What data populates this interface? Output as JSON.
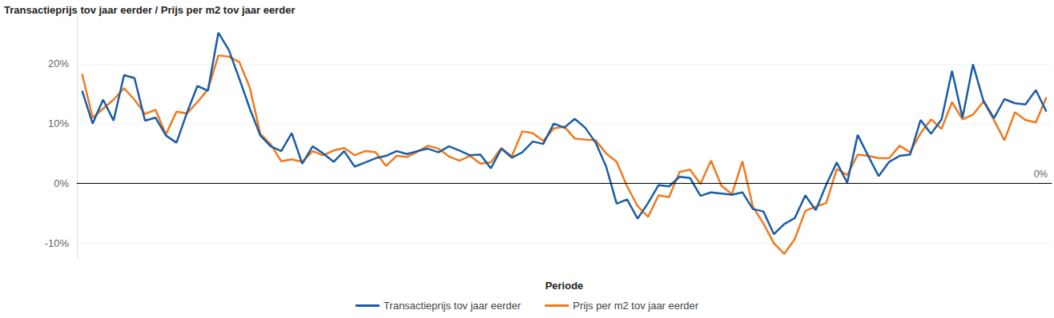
{
  "chart_data": {
    "type": "line",
    "title": "Transactieprijs tov jaar eerder / Prijs per m2 tov jaar eerder",
    "x_label": "Periode",
    "categories": [
      null,
      null,
      null,
      null,
      null,
      null,
      null,
      null,
      null,
      null,
      null,
      null,
      null,
      null,
      null,
      null,
      null,
      null,
      null,
      null,
      null,
      null,
      null,
      null,
      null,
      null,
      null,
      null,
      null,
      null,
      null,
      null,
      null,
      null,
      null,
      null,
      null,
      null,
      null,
      null,
      null,
      null,
      null,
      null,
      null,
      null,
      null,
      null,
      null,
      null,
      null,
      null,
      null,
      null,
      null,
      null,
      null,
      null,
      null,
      null,
      null,
      null,
      null,
      null,
      null,
      null,
      null,
      null,
      null,
      null,
      null,
      null,
      null,
      null,
      null,
      null,
      null,
      null,
      null,
      null,
      null,
      null,
      null,
      null,
      null,
      null,
      null,
      null,
      null,
      null,
      null,
      null,
      null
    ],
    "series": [
      {
        "name": "Transactieprijs tov jaar eerder",
        "color": "#1a5da6",
        "values": [
          15.5,
          10,
          14,
          10.5,
          18.1,
          17.6,
          10.5,
          11,
          8,
          6.8,
          11.8,
          16.3,
          15.5,
          25.2,
          22.3,
          17.5,
          12.5,
          8,
          6.2,
          5.4,
          8.4,
          3.3,
          6.2,
          5,
          3.6,
          5.4,
          2.8,
          3.5,
          4.2,
          4.6,
          5.4,
          4.9,
          5.4,
          5.8,
          5.2,
          6.2,
          5.5,
          4.7,
          4.8,
          2.5,
          5.8,
          4.3,
          5.2,
          7,
          6.6,
          10,
          9.3,
          10.8,
          9.3,
          6.8,
          2.8,
          -3.4,
          -2.7,
          -5.9,
          -3.3,
          -0.3,
          -0.5,
          1.1,
          0.9,
          -2.1,
          -1.5,
          -1.7,
          -1.9,
          -1.5,
          -4.3,
          -4.7,
          -8.5,
          -6.8,
          -5.8,
          -2,
          -4.5,
          -0.2,
          3.5,
          0.1,
          8.1,
          4.6,
          1.2,
          3.6,
          4.6,
          4.8,
          10.6,
          8.3,
          10.7,
          18.8,
          11,
          19.9,
          13.8,
          10.9,
          14.1,
          13.4,
          13.2,
          15.6,
          12
        ]
      },
      {
        "name": "Prijs per m2 tov jaar eerder",
        "color": "#f07a1e",
        "values": [
          18.3,
          11,
          12.5,
          14,
          15.9,
          14,
          11.6,
          12.3,
          8.2,
          12,
          11.7,
          13.6,
          15.7,
          21.4,
          21.2,
          20.3,
          16,
          8.3,
          6.5,
          3.7,
          4,
          3.6,
          5.4,
          4.7,
          5.5,
          5.9,
          4.7,
          5.4,
          5.2,
          2.9,
          4.6,
          4.4,
          5.3,
          6.3,
          5.8,
          4.5,
          3.8,
          4.6,
          3.3,
          3.5,
          5.9,
          4.5,
          8.7,
          8.4,
          7.1,
          9.2,
          9.5,
          7.5,
          7.3,
          7.2,
          5,
          3.6,
          -0.5,
          -3.8,
          -5.6,
          -2,
          -2.3,
          1.9,
          2.3,
          -0.1,
          3.8,
          -0.4,
          -1.8,
          3.7,
          -3.9,
          -6.7,
          -10,
          -11.8,
          -9.3,
          -4.6,
          -3.9,
          -3.3,
          2.4,
          1.4,
          4.8,
          4.6,
          4.2,
          4.2,
          6.3,
          5.2,
          8.4,
          10.7,
          9.1,
          13.6,
          10.7,
          11.5,
          13.7,
          10.6,
          7.2,
          11.9,
          10.6,
          10.2,
          14.4
        ]
      }
    ],
    "ylim": [
      -12.5,
      28
    ],
    "yticks": [
      {
        "value": -10,
        "label": "-10%"
      },
      {
        "value": 0,
        "label": "0%"
      },
      {
        "value": 10,
        "label": "10%"
      },
      {
        "value": 20,
        "label": "20%"
      }
    ],
    "annotations": [
      {
        "label": "0%",
        "y": 0
      }
    ],
    "grid": true,
    "legend": "bottom",
    "tick_labels": "y"
  }
}
